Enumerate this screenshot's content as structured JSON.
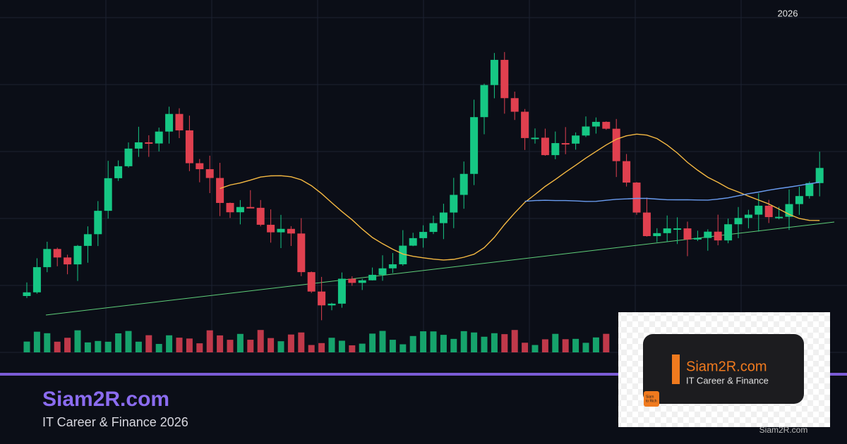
{
  "chart_label": "2026",
  "banner": {
    "title": "Siam2R.com",
    "subtitle": "IT Career & Finance 2026"
  },
  "logo_card": {
    "title": "Siam2R.com",
    "subtitle": "IT Career & Finance",
    "badge_line1": "Siam",
    "badge_line2": "to Rich"
  },
  "watermark": "Siam2R.com"
}
